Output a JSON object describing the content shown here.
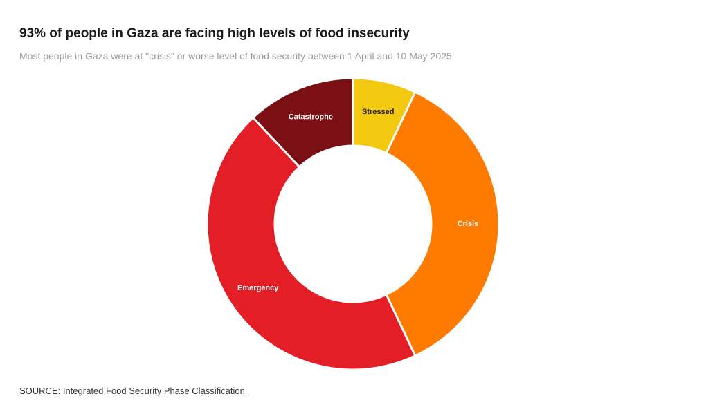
{
  "header": {
    "title": "93% of people in Gaza are facing high levels of food insecurity",
    "subtitle": "Most people in Gaza were at \"crisis\" or worse level of food security between 1 April and 10 May 2025"
  },
  "chart_data": {
    "type": "pie",
    "variant": "donut",
    "title": "93% of people in Gaza are facing high levels of food insecurity",
    "subtitle": "Most people in Gaza were at \"crisis\" or worse level of food security between 1 April and 10 May 2025",
    "start": "top",
    "direction": "clockwise",
    "slices": [
      {
        "label": "Stressed",
        "value": 7,
        "color": "#f2c811",
        "label_color": "#1a1a1a"
      },
      {
        "label": "Crisis",
        "value": 36,
        "color": "#ff7b00",
        "label_color": "#ffffff"
      },
      {
        "label": "Emergency",
        "value": 45,
        "color": "#e31e27",
        "label_color": "#ffffff"
      },
      {
        "label": "Catastrophe",
        "value": 12,
        "color": "#7a0f14",
        "label_color": "#ffffff"
      }
    ],
    "unit": "%",
    "legend": "none",
    "data_labels": "category name inside slice"
  },
  "footer": {
    "source_prefix": "SOURCE: ",
    "source_link": "Integrated Food Security Phase Classification"
  }
}
